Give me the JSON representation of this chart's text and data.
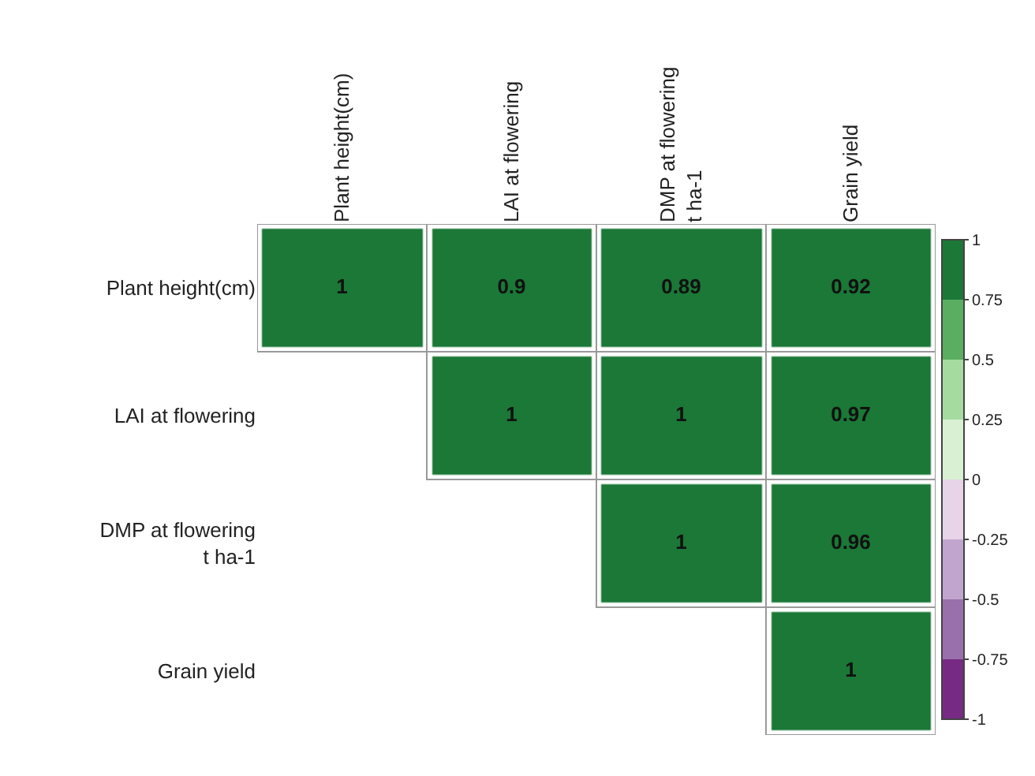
{
  "chart_data": {
    "type": "heatmap",
    "categories": [
      "Plant height(cm)",
      "LAI at flowering",
      "DMP at flowering\nt ha-1",
      "Grain yield"
    ],
    "y_categories": [
      "Plant height(cm)",
      "LAI at flowering",
      "DMP at flowering\nt ha-1",
      "Grain yield"
    ],
    "cells": [
      [
        1,
        0.9,
        0.89,
        0.92
      ],
      [
        null,
        1,
        1,
        0.97
      ],
      [
        null,
        null,
        1,
        0.96
      ],
      [
        null,
        null,
        null,
        1
      ]
    ],
    "data_labels": true,
    "clim": [
      -1,
      1
    ],
    "cticks": [
      -1,
      -0.75,
      -0.5,
      -0.25,
      0,
      0.25,
      0.5,
      0.75,
      1
    ],
    "colors": [
      "#762a83",
      "#9970ab",
      "#c2a5cf",
      "#e7d4e8",
      "#d9f0d3",
      "#a6dba0",
      "#5aae61",
      "#1b7837"
    ]
  }
}
